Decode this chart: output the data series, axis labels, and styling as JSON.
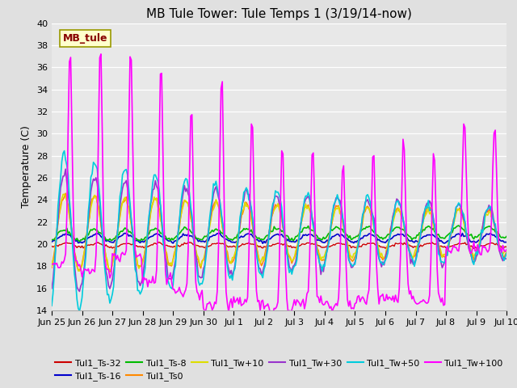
{
  "title": "MB Tule Tower: Tule Temps 1 (3/19/14-now)",
  "ylabel": "Temperature (C)",
  "ylim": [
    14,
    40
  ],
  "yticks": [
    14,
    16,
    18,
    20,
    22,
    24,
    26,
    28,
    30,
    32,
    34,
    36,
    38,
    40
  ],
  "xlim": [
    0,
    360
  ],
  "background_color": "#e0e0e0",
  "plot_bg_color": "#e8e8e8",
  "grid_color": "#ffffff",
  "series": {
    "Tul1_Ts-32": {
      "color": "#cc0000",
      "lw": 1.0
    },
    "Tul1_Ts-16": {
      "color": "#0000cc",
      "lw": 1.2
    },
    "Tul1_Ts-8": {
      "color": "#00bb00",
      "lw": 1.2
    },
    "Tul1_Ts0": {
      "color": "#ff8800",
      "lw": 1.2
    },
    "Tul1_Tw+10": {
      "color": "#dddd00",
      "lw": 1.2
    },
    "Tul1_Tw+30": {
      "color": "#9933cc",
      "lw": 1.2
    },
    "Tul1_Tw+50": {
      "color": "#00ccdd",
      "lw": 1.2
    },
    "Tul1_Tw+100": {
      "color": "#ff00ff",
      "lw": 1.2
    }
  },
  "xtick_positions": [
    0,
    24,
    48,
    72,
    96,
    120,
    144,
    168,
    192,
    216,
    240,
    264,
    288,
    312,
    336,
    360
  ],
  "xtick_labels": [
    "Jun 25",
    "Jun 26",
    "Jun 27",
    "Jun 28",
    "Jun 29",
    "Jun 30",
    "Jul 1",
    "Jul 2",
    "Jul 3",
    "Jul 4",
    "Jul 5",
    "Jul 6",
    "Jul 7",
    "Jul 8",
    "Jul 9",
    "Jul 10"
  ],
  "watermark": "MB_tule",
  "watermark_color": "#880000",
  "watermark_bg": "#ffffcc",
  "watermark_edge": "#999900",
  "title_fontsize": 11,
  "axis_fontsize": 9,
  "tick_fontsize": 8,
  "legend_fontsize": 8
}
